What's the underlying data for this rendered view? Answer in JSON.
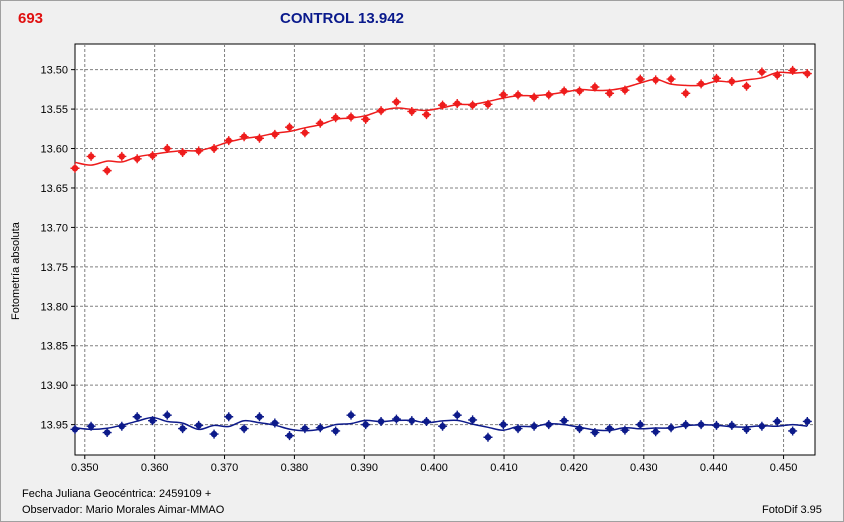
{
  "header": {
    "object_id": "693",
    "title": "CONTROL 13.942"
  },
  "footer": {
    "date_label": "Fecha Juliana Geocéntrica: 2459109 +",
    "observer_label": "Observador: Mario Morales Aimar-MMAO",
    "software": "FotoDif 3.95"
  },
  "colors": {
    "red_series": "#ee1c1c",
    "blue_series": "#0d1a8a",
    "title": "#0a1a8c",
    "plot_bg": "#ffffff",
    "grid": "#808080"
  },
  "chart_data": {
    "type": "scatter",
    "title": "CONTROL 13.942",
    "xlabel": "",
    "ylabel": "Fotometría absoluta",
    "xlim": [
      0.3486,
      0.4545
    ],
    "ylim": [
      13.4675,
      13.9885
    ],
    "y_inverted": true,
    "grid": true,
    "x_ticks": [
      "0.350",
      "0.360",
      "0.370",
      "0.380",
      "0.390",
      "0.400",
      "0.410",
      "0.420",
      "0.430",
      "0.440",
      "0.450"
    ],
    "y_ticks": [
      "13.50",
      "13.55",
      "13.60",
      "13.65",
      "13.70",
      "13.75",
      "13.80",
      "13.85",
      "13.90",
      "13.95"
    ],
    "series": [
      {
        "color": "red",
        "x": [
          0.3486,
          0.3509,
          0.3532,
          0.3553,
          0.3575,
          0.3597,
          0.3618,
          0.364,
          0.3663,
          0.3685,
          0.3706,
          0.3728,
          0.375,
          0.3772,
          0.3793,
          0.3815,
          0.3837,
          0.3859,
          0.3881,
          0.3902,
          0.3924,
          0.3946,
          0.3968,
          0.3989,
          0.4012,
          0.4033,
          0.4055,
          0.4077,
          0.4099,
          0.412,
          0.4143,
          0.4164,
          0.4186,
          0.4208,
          0.423,
          0.4251,
          0.4273,
          0.4295,
          0.4317,
          0.4339,
          0.436,
          0.4382,
          0.4404,
          0.4426,
          0.4447,
          0.4469,
          0.4491,
          0.4513,
          0.4534
        ],
        "y": [
          13.625,
          13.61,
          13.628,
          13.61,
          13.613,
          13.609,
          13.6,
          13.605,
          13.603,
          13.6,
          13.59,
          13.585,
          13.587,
          13.582,
          13.573,
          13.58,
          13.568,
          13.561,
          13.56,
          13.563,
          13.552,
          13.541,
          13.553,
          13.557,
          13.545,
          13.543,
          13.545,
          13.544,
          13.532,
          13.532,
          13.535,
          13.532,
          13.527,
          13.527,
          13.522,
          13.53,
          13.526,
          13.512,
          13.513,
          13.512,
          13.53,
          13.518,
          13.511,
          13.515,
          13.521,
          13.503,
          13.507,
          13.501,
          13.505
        ]
      },
      {
        "color": "blue",
        "x": [
          0.3486,
          0.3509,
          0.3532,
          0.3553,
          0.3575,
          0.3597,
          0.3618,
          0.364,
          0.3663,
          0.3685,
          0.3706,
          0.3728,
          0.375,
          0.3772,
          0.3793,
          0.3815,
          0.3837,
          0.3859,
          0.3881,
          0.3902,
          0.3924,
          0.3946,
          0.3968,
          0.3989,
          0.4012,
          0.4033,
          0.4055,
          0.4077,
          0.4099,
          0.412,
          0.4143,
          0.4164,
          0.4186,
          0.4208,
          0.423,
          0.4251,
          0.4273,
          0.4295,
          0.4317,
          0.4339,
          0.436,
          0.4382,
          0.4404,
          0.4426,
          0.4447,
          0.4469,
          0.4491,
          0.4513,
          0.4534
        ],
        "y": [
          13.956,
          13.952,
          13.96,
          13.952,
          13.94,
          13.945,
          13.938,
          13.955,
          13.951,
          13.962,
          13.94,
          13.955,
          13.94,
          13.948,
          13.964,
          13.955,
          13.954,
          13.958,
          13.938,
          13.95,
          13.946,
          13.943,
          13.945,
          13.946,
          13.952,
          13.938,
          13.944,
          13.966,
          13.95,
          13.955,
          13.952,
          13.95,
          13.945,
          13.955,
          13.96,
          13.955,
          13.957,
          13.95,
          13.959,
          13.954,
          13.95,
          13.95,
          13.951,
          13.951,
          13.956,
          13.952,
          13.946,
          13.958,
          13.946
        ]
      }
    ]
  }
}
